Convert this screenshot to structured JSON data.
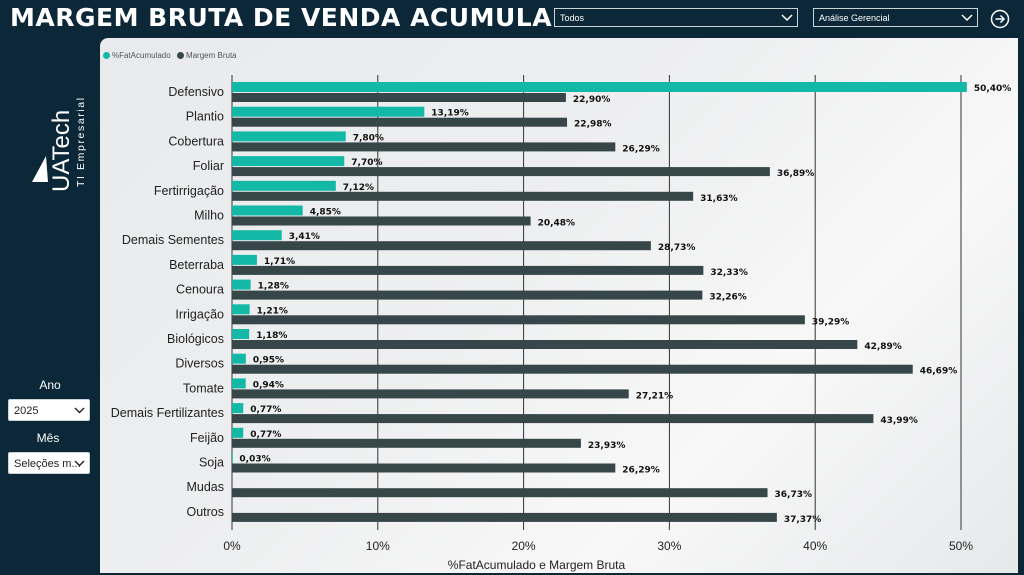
{
  "header": {
    "title": "MARGEM BRUTA DE VENDA ACUMULADA",
    "filter1_value": "Todos",
    "filter2_value": "Análise Gerencial",
    "nav_icon": "arrow-right-circle-icon"
  },
  "sidebar": {
    "logo_main": "UATech",
    "logo_sub": "TI Empresarial",
    "ano_label": "Ano",
    "ano_value": "2025",
    "mes_label": "Mês",
    "mes_value": "Seleções m..."
  },
  "legend": [
    {
      "name": "%FatAcumulado",
      "color": "#14b8a6"
    },
    {
      "name": "Margem Bruta",
      "color": "#374649"
    }
  ],
  "chart_data": {
    "type": "bar",
    "orientation": "horizontal",
    "categories": [
      "Defensivo",
      "Plantio",
      "Cobertura",
      "Foliar",
      "Fertirrigação",
      "Milho",
      "Demais Sementes",
      "Beterraba",
      "Cenoura",
      "Irrigação",
      "Biológicos",
      "Diversos",
      "Tomate",
      "Demais Fertilizantes",
      "Feijão",
      "Soja",
      "Mudas",
      "Outros"
    ],
    "series": [
      {
        "name": "%FatAcumulado",
        "color": "#14b8a6",
        "values": [
          50.4,
          13.19,
          7.8,
          7.7,
          7.12,
          4.85,
          3.41,
          1.71,
          1.28,
          1.21,
          1.18,
          0.95,
          0.94,
          0.77,
          0.77,
          0.03,
          null,
          null
        ],
        "labels": [
          "50,40%",
          "13,19%",
          "7,80%",
          "7,70%",
          "7,12%",
          "4,85%",
          "3,41%",
          "1,71%",
          "1,28%",
          "1,21%",
          "1,18%",
          "0,95%",
          "0,94%",
          "0,77%",
          "0,77%",
          "0,03%",
          "",
          ""
        ]
      },
      {
        "name": "Margem Bruta",
        "color": "#374649",
        "values": [
          22.9,
          22.98,
          26.29,
          36.89,
          31.63,
          20.48,
          28.73,
          32.33,
          32.26,
          39.29,
          42.89,
          46.69,
          27.21,
          43.99,
          23.93,
          26.29,
          36.73,
          37.37
        ],
        "labels": [
          "22,90%",
          "22,98%",
          "26,29%",
          "36,89%",
          "31,63%",
          "20,48%",
          "28,73%",
          "32,33%",
          "32,26%",
          "39,29%",
          "42,89%",
          "46,69%",
          "27,21%",
          "43,99%",
          "23,93%",
          "26,29%",
          "36,73%",
          "37,37%"
        ]
      }
    ],
    "xticks": [
      0,
      10,
      20,
      30,
      40,
      50
    ],
    "xtick_labels": [
      "0%",
      "10%",
      "20%",
      "30%",
      "40%",
      "50%"
    ],
    "xlabel": "%FatAcumulado e Margem Bruta",
    "xlim": [
      0,
      50
    ],
    "grid": "vertical"
  }
}
